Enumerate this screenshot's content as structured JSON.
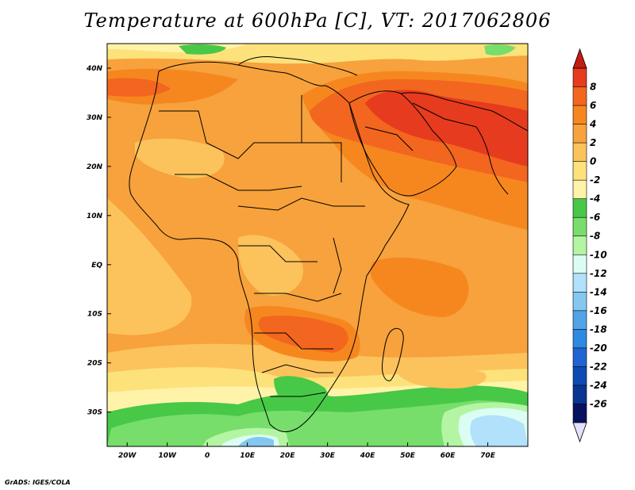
{
  "title": "Temperature at 600hPa [C], VT: 2017062806",
  "credit": "GrADS: IGES/COLA",
  "map": {
    "region": "Africa, Arabian Peninsula and western Indian Ocean",
    "projection": "latitude-longitude",
    "longitude_range": [
      -25,
      80
    ],
    "latitude_range": [
      -37,
      45
    ],
    "longitude_ticks": [
      "20W",
      "10W",
      "0",
      "10E",
      "20E",
      "30E",
      "40E",
      "50E",
      "60E",
      "70E"
    ],
    "latitude_ticks": [
      "40N",
      "30N",
      "20N",
      "10N",
      "EQ",
      "10S",
      "20S",
      "30S"
    ]
  },
  "colorbar": {
    "labels": [
      "8",
      "6",
      "4",
      "2",
      "0",
      "-2",
      "-4",
      "-6",
      "-8",
      "-10",
      "-12",
      "-14",
      "-16",
      "-18",
      "-20",
      "-22",
      "-24",
      "-26"
    ],
    "colors": [
      "#e63b1e",
      "#f2661f",
      "#f6871f",
      "#f7a23c",
      "#fcc35c",
      "#fde27b",
      "#fef3a9",
      "#48c847",
      "#77de6b",
      "#b4f5a3",
      "#dcfdf3",
      "#b1e1fb",
      "#84c8f2",
      "#52a4e8",
      "#2e8ae1",
      "#1f64d2",
      "#0f4ab3",
      "#083592",
      "#06125f"
    ],
    "upper_arrow_color": "#c51b11",
    "lower_arrow_color": "#e4e0ff"
  }
}
